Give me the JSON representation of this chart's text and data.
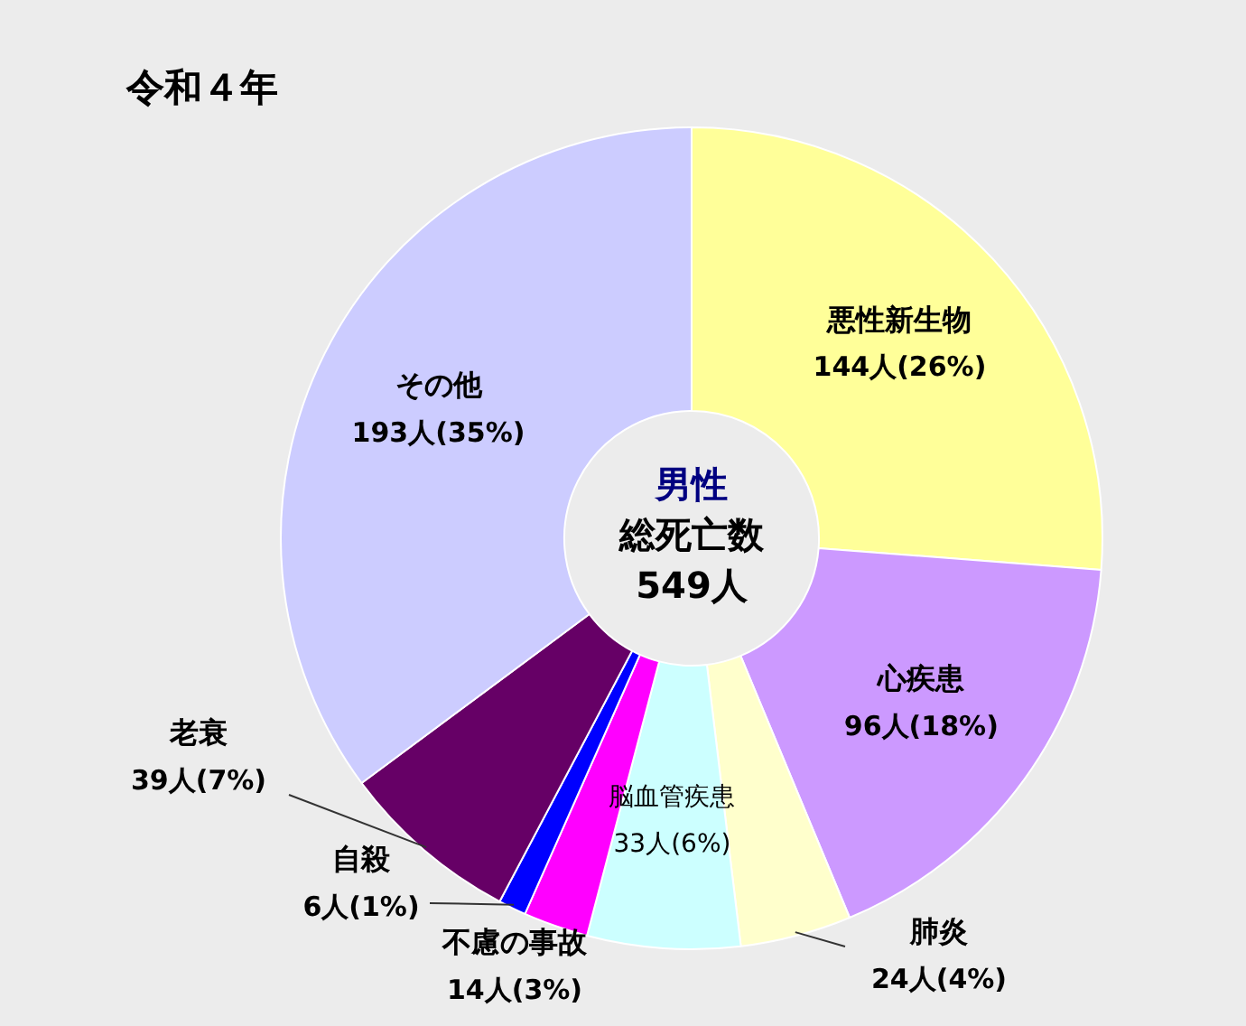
{
  "chart_data": {
    "type": "donut",
    "title": "令和４年",
    "categories": [
      "悪性新生物",
      "心疾患",
      "肺炎",
      "脳血管疾患",
      "不慮の事故",
      "自殺",
      "老衰",
      "その他"
    ],
    "values": [
      144,
      96,
      24,
      33,
      14,
      6,
      39,
      193
    ],
    "value_labels": [
      "144人(26%)",
      "96人(18%)",
      "24人(4%)",
      "33人(6%)",
      "14人(3%)",
      "6人(1%)",
      "39人(7%)",
      "193人(35%)"
    ],
    "colors": [
      "#ffff99",
      "#cc99ff",
      "#ffffcc",
      "#ccffff",
      "#ff00ff",
      "#0000ff",
      "#660066",
      "#ccccff"
    ],
    "annotations": [
      "男性",
      "総死亡数",
      "549人"
    ],
    "legend": false
  }
}
